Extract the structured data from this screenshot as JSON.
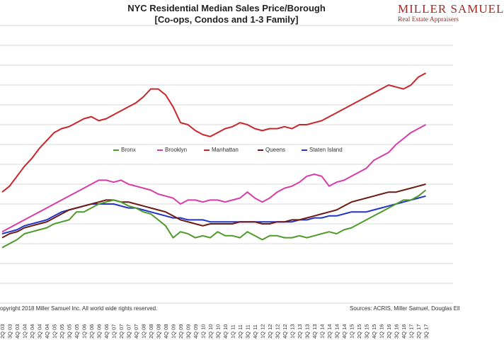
{
  "header": {
    "title_line1": "NYC Residential Median Sales Price/Borough",
    "title_line2": "[Co-ops, Condos and 1-3 Family]"
  },
  "brand": {
    "name": "MILLER SAMUEL",
    "tagline": "Real Estate Appraisers"
  },
  "footer": {
    "copyright": "opyright 2018 Miller Samuel Inc.  All world wide rights reserved.",
    "sources": "Sources: ACRIS, Miller Samuel, Douglas Ell"
  },
  "colors": {
    "Bronx": "#4e9a2a",
    "Brooklyn": "#d63ca8",
    "Manhattan": "#c8262b",
    "Queens": "#6b1b14",
    "Staten Island": "#2334c8",
    "grid": "#cccccc"
  },
  "chart_data": {
    "type": "line",
    "title": "NYC Residential Median Sales Price/Borough [Co-ops, Condos and 1-3 Family]",
    "xlabel": "",
    "ylabel": "",
    "ylim": [
      0,
      1400000
    ],
    "y_tick_labels_visible": false,
    "grid": "horizontal",
    "legend": "center",
    "categories": [
      "2Q 03",
      "3Q 03",
      "4Q 03",
      "1Q 04",
      "2Q 04",
      "3Q 04",
      "4Q 04",
      "1Q 05",
      "2Q 05",
      "3Q 05",
      "4Q 05",
      "1Q 06",
      "2Q 06",
      "3Q 06",
      "4Q 06",
      "1Q 07",
      "2Q 07",
      "3Q 07",
      "4Q 07",
      "1Q 08",
      "2Q 08",
      "3Q 08",
      "4Q 08",
      "1Q 09",
      "2Q 09",
      "3Q 09",
      "4Q 09",
      "1Q 10",
      "2Q 10",
      "3Q 10",
      "4Q 10",
      "1Q 11",
      "2Q 11",
      "3Q 11",
      "4Q 11",
      "1Q 12",
      "2Q 12",
      "3Q 12",
      "4Q 12",
      "1Q 13",
      "2Q 13",
      "3Q 13",
      "4Q 13",
      "1Q 14",
      "2Q 14",
      "3Q 14",
      "4Q 14",
      "1Q 15",
      "2Q 15",
      "3Q 15",
      "4Q 15",
      "1Q 16",
      "2Q 16",
      "3Q 16",
      "4Q 16",
      "1Q 17",
      "2Q 17",
      "3Q 17"
    ],
    "series": [
      {
        "name": "Bronx",
        "values": [
          280000,
          300000,
          320000,
          350000,
          360000,
          370000,
          380000,
          400000,
          410000,
          420000,
          460000,
          460000,
          480000,
          500000,
          510000,
          520000,
          510000,
          490000,
          480000,
          460000,
          450000,
          420000,
          390000,
          330000,
          360000,
          350000,
          330000,
          340000,
          330000,
          360000,
          340000,
          340000,
          330000,
          360000,
          340000,
          320000,
          340000,
          340000,
          330000,
          330000,
          340000,
          330000,
          340000,
          350000,
          360000,
          350000,
          370000,
          380000,
          400000,
          420000,
          440000,
          460000,
          480000,
          500000,
          520000,
          520000,
          540000,
          570000
        ]
      },
      {
        "name": "Brooklyn",
        "values": [
          360000,
          380000,
          400000,
          420000,
          440000,
          460000,
          480000,
          500000,
          520000,
          540000,
          560000,
          580000,
          600000,
          620000,
          620000,
          610000,
          620000,
          600000,
          590000,
          580000,
          570000,
          550000,
          540000,
          530000,
          500000,
          520000,
          520000,
          510000,
          520000,
          520000,
          510000,
          520000,
          530000,
          560000,
          530000,
          510000,
          530000,
          560000,
          580000,
          590000,
          610000,
          640000,
          650000,
          640000,
          590000,
          610000,
          620000,
          640000,
          660000,
          680000,
          720000,
          740000,
          760000,
          800000,
          830000,
          860000,
          880000,
          900000
        ]
      },
      {
        "name": "Manhattan",
        "values": [
          560000,
          590000,
          640000,
          690000,
          730000,
          780000,
          820000,
          860000,
          880000,
          890000,
          910000,
          930000,
          940000,
          920000,
          930000,
          950000,
          970000,
          990000,
          1010000,
          1040000,
          1080000,
          1080000,
          1050000,
          990000,
          910000,
          900000,
          870000,
          850000,
          840000,
          860000,
          880000,
          890000,
          910000,
          900000,
          880000,
          870000,
          880000,
          880000,
          890000,
          880000,
          900000,
          900000,
          910000,
          920000,
          940000,
          960000,
          980000,
          1000000,
          1020000,
          1040000,
          1060000,
          1080000,
          1100000,
          1090000,
          1080000,
          1100000,
          1140000,
          1160000
        ]
      },
      {
        "name": "Queens",
        "values": [
          330000,
          350000,
          360000,
          380000,
          390000,
          400000,
          410000,
          430000,
          450000,
          470000,
          480000,
          490000,
          500000,
          510000,
          520000,
          520000,
          510000,
          510000,
          500000,
          490000,
          480000,
          470000,
          460000,
          440000,
          420000,
          410000,
          400000,
          390000,
          400000,
          400000,
          400000,
          400000,
          410000,
          410000,
          410000,
          400000,
          400000,
          410000,
          410000,
          420000,
          420000,
          430000,
          440000,
          450000,
          460000,
          470000,
          490000,
          510000,
          520000,
          530000,
          540000,
          550000,
          560000,
          560000,
          570000,
          580000,
          590000,
          600000
        ]
      },
      {
        "name": "Staten Island",
        "values": [
          350000,
          360000,
          370000,
          390000,
          400000,
          410000,
          420000,
          440000,
          460000,
          470000,
          480000,
          490000,
          500000,
          500000,
          500000,
          500000,
          490000,
          480000,
          480000,
          470000,
          460000,
          450000,
          440000,
          430000,
          430000,
          420000,
          420000,
          420000,
          410000,
          410000,
          410000,
          410000,
          410000,
          410000,
          410000,
          410000,
          410000,
          410000,
          410000,
          410000,
          420000,
          420000,
          430000,
          430000,
          440000,
          440000,
          450000,
          460000,
          460000,
          460000,
          470000,
          480000,
          490000,
          500000,
          510000,
          520000,
          530000,
          540000
        ]
      }
    ]
  }
}
